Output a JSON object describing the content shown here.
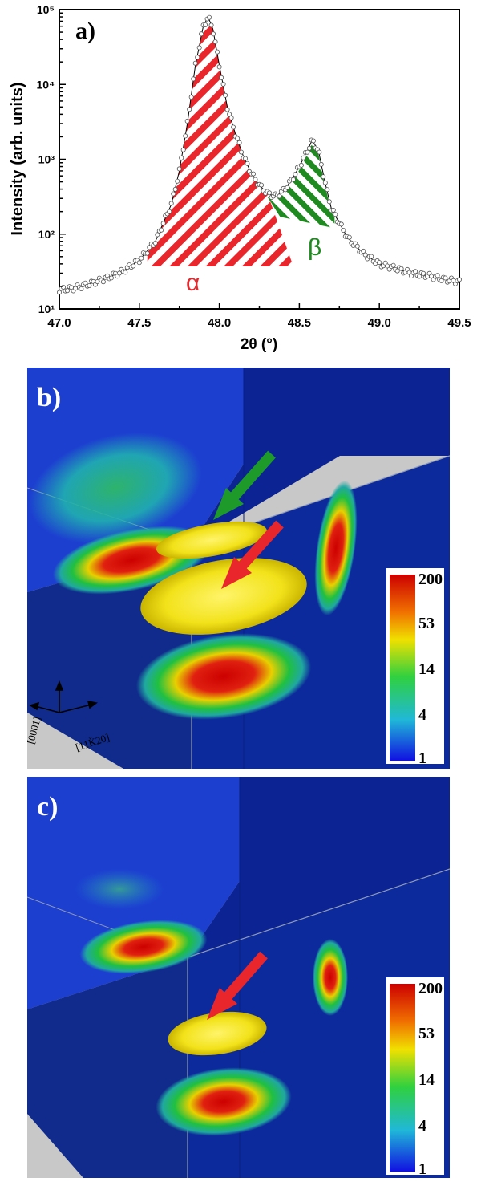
{
  "panel_a": {
    "label": "a)",
    "ylabel": "Intensity (arb. units)",
    "xlabel": "2θ (°)",
    "peak_labels": [
      "α",
      "β"
    ],
    "colors": {
      "alpha": "#e8262b",
      "beta": "#1f8a1f"
    }
  },
  "panel_b": {
    "label": "b)",
    "axis_labels": [
      "[0001]",
      "[11Ǩ20]"
    ],
    "colorbar_ticks": [
      "200",
      "53",
      "14",
      "4",
      "1"
    ]
  },
  "panel_c": {
    "label": "c)",
    "colorbar_ticks": [
      "200",
      "53",
      "14",
      "4",
      "1"
    ]
  },
  "chart_data": [
    {
      "type": "line",
      "title": "",
      "xlabel": "2θ (°)",
      "ylabel": "Intensity (arb. units)",
      "xlim": [
        47.0,
        49.5
      ],
      "ylim": [
        10,
        100000
      ],
      "yscale": "log",
      "x_ticks": [
        "47.0",
        "47.5",
        "48.0",
        "48.5",
        "49.0",
        "49.5"
      ],
      "y_ticks": [
        "10¹",
        "10²",
        "10³",
        "10⁴",
        "10⁵"
      ],
      "y_tick_values": [
        10,
        100,
        1000,
        10000,
        100000
      ],
      "series": [
        {
          "x": [
            47.0,
            47.1,
            47.2,
            47.3,
            47.4,
            47.5,
            47.6,
            47.7,
            47.75,
            47.8,
            47.85,
            47.9,
            47.93,
            47.96,
            48.0,
            48.05,
            48.1,
            48.15,
            48.2,
            48.25,
            48.3,
            48.35,
            48.4,
            48.45,
            48.5,
            48.55,
            48.58,
            48.62,
            48.66,
            48.7,
            48.8,
            48.9,
            49.0,
            49.1,
            49.2,
            49.3,
            49.4,
            49.5
          ],
          "values": [
            18,
            19,
            22,
            26,
            32,
            45,
            80,
            250,
            700,
            3000,
            18000,
            60000,
            80000,
            55000,
            18000,
            5000,
            2200,
            1100,
            650,
            450,
            350,
            320,
            380,
            520,
            800,
            1300,
            1800,
            1300,
            500,
            220,
            90,
            55,
            40,
            35,
            30,
            28,
            25,
            23
          ]
        }
      ],
      "peaks": [
        {
          "name": "α",
          "position": 47.95
        },
        {
          "name": "β",
          "position": 48.58
        }
      ]
    }
  ]
}
